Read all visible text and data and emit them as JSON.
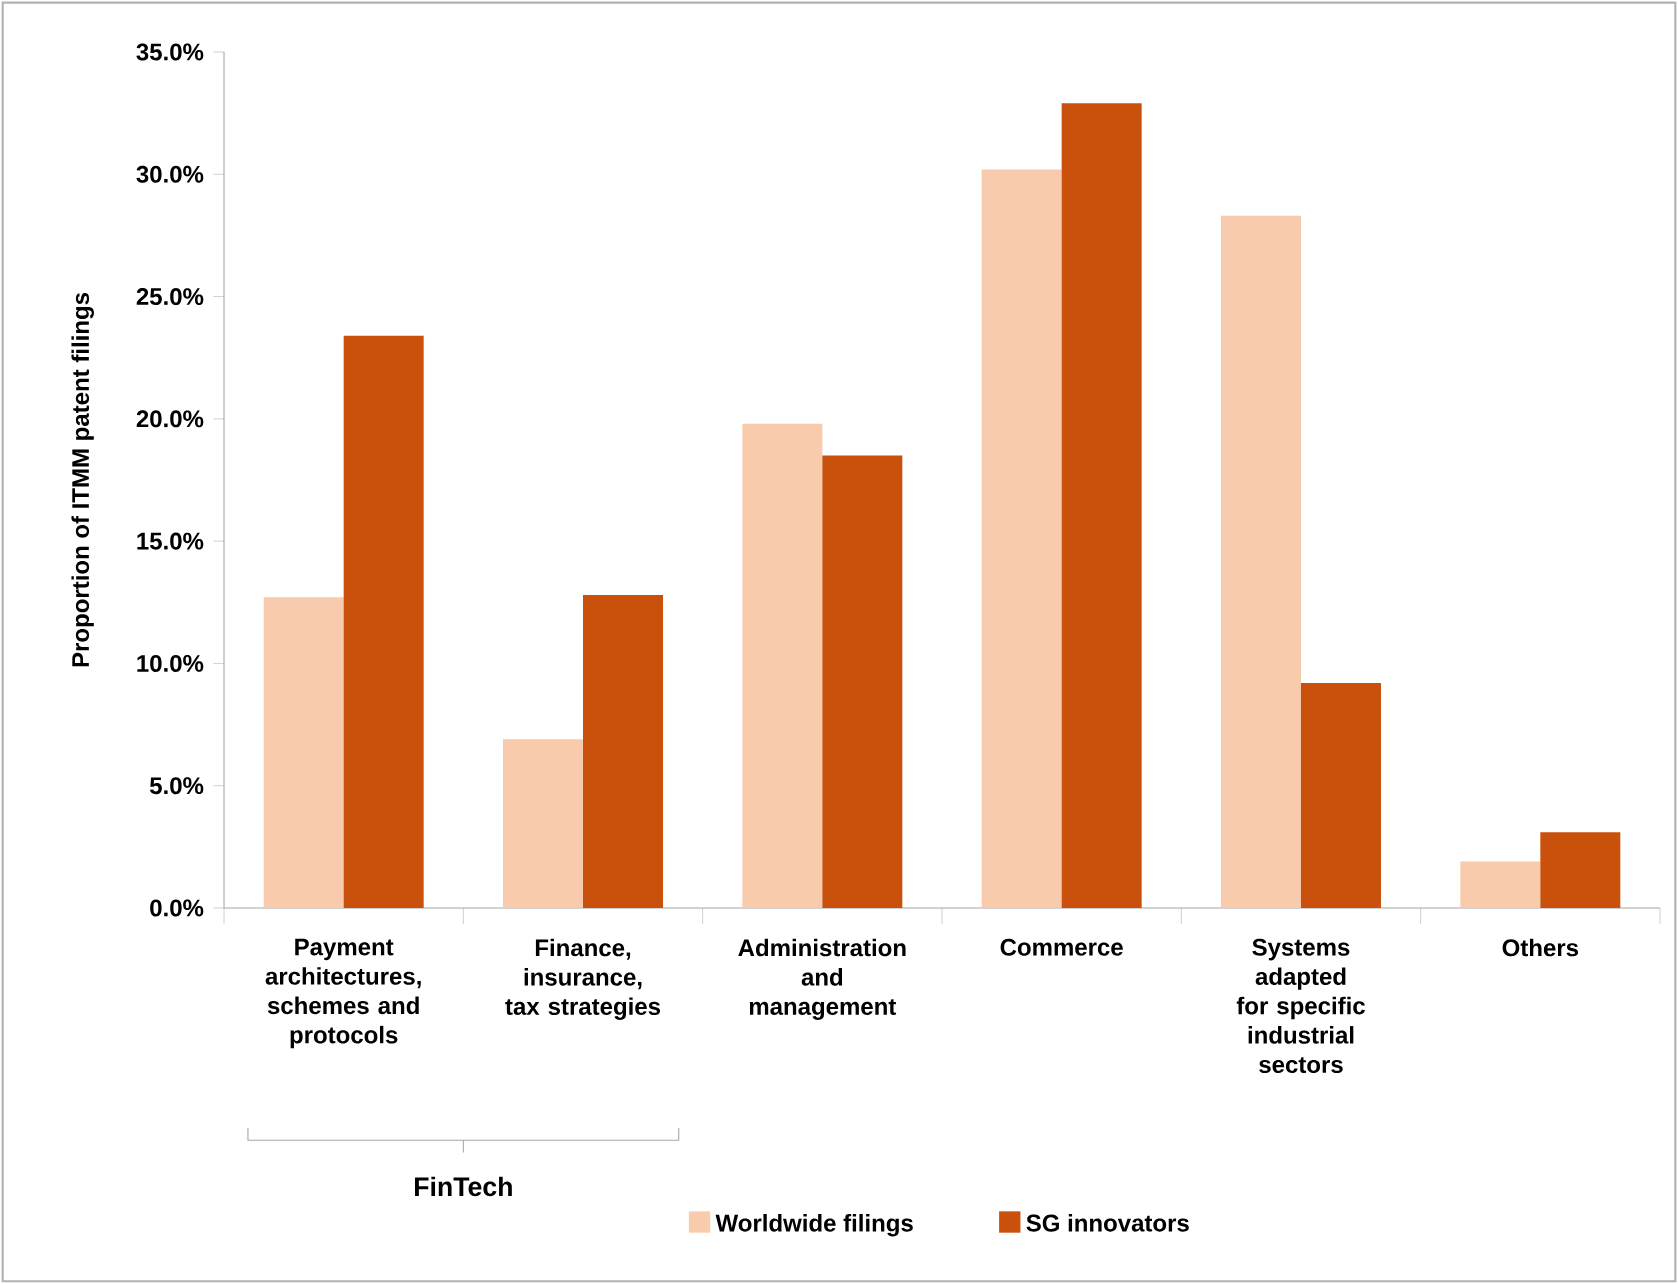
{
  "chart_data": {
    "type": "bar",
    "ylabel": "Proportion of ITMM patent filings",
    "categories": [
      "Payment architectures, schemes and protocols",
      "Finance, insurance, tax strategies",
      "Administration and management",
      "Commerce",
      "Systems adapted for specific industrial sectors",
      "Others"
    ],
    "series": [
      {
        "name": "Worldwide filings",
        "color": "#f8cbad",
        "values": [
          12.7,
          6.9,
          19.8,
          30.2,
          28.3,
          1.9
        ]
      },
      {
        "name": "SG innovators",
        "color": "#c9510c",
        "values": [
          23.4,
          12.8,
          18.5,
          32.9,
          9.2,
          3.1
        ]
      }
    ],
    "ylim": [
      0,
      35
    ],
    "yticks": [
      {
        "value": 0,
        "label": "0.0%"
      },
      {
        "value": 5,
        "label": "5.0%"
      },
      {
        "value": 10,
        "label": "10.0%"
      },
      {
        "value": 15,
        "label": "15.0%"
      },
      {
        "value": 20,
        "label": "20.0%"
      },
      {
        "value": 25,
        "label": "25.0%"
      },
      {
        "value": 30,
        "label": "30.0%"
      },
      {
        "value": 35,
        "label": "35.0%"
      }
    ],
    "grid": false,
    "legend": "bottom",
    "annotations": [
      "FinTech"
    ]
  }
}
